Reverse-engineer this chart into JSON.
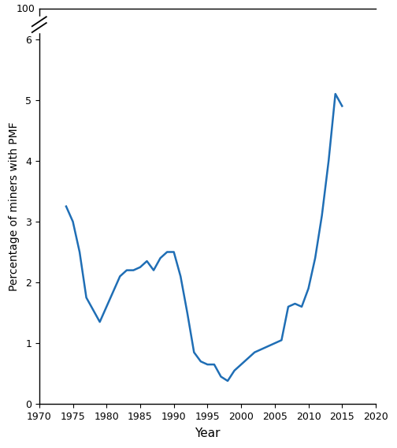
{
  "x": [
    1974,
    1975,
    1976,
    1977,
    1978,
    1979,
    1980,
    1981,
    1982,
    1983,
    1984,
    1985,
    1986,
    1987,
    1988,
    1989,
    1990,
    1991,
    1992,
    1993,
    1994,
    1995,
    1996,
    1997,
    1998,
    1999,
    2000,
    2001,
    2002,
    2003,
    2004,
    2005,
    2006,
    2007,
    2008,
    2009,
    2010,
    2011,
    2012,
    2013,
    2014,
    2015
  ],
  "y": [
    3.25,
    3.0,
    2.5,
    1.75,
    1.55,
    1.35,
    1.6,
    1.85,
    2.1,
    2.2,
    2.2,
    2.25,
    2.35,
    2.2,
    2.4,
    2.5,
    2.5,
    2.1,
    1.5,
    0.85,
    0.7,
    0.65,
    0.65,
    0.45,
    0.38,
    0.55,
    0.65,
    0.75,
    0.85,
    0.9,
    0.95,
    1.0,
    1.05,
    1.6,
    1.65,
    1.6,
    1.9,
    2.4,
    3.1,
    4.0,
    5.1,
    4.9
  ],
  "line_color": "#1f6eb5",
  "line_width": 1.8,
  "xlabel": "Year",
  "ylabel": "Percentage of miners with PMF",
  "xlim": [
    1970,
    2020
  ],
  "ylim": [
    0,
    6.5
  ],
  "ytick_regular": [
    0,
    1,
    2,
    3,
    4,
    5,
    6
  ],
  "xticks": [
    1970,
    1975,
    1980,
    1985,
    1990,
    1995,
    2000,
    2005,
    2010,
    2015,
    2020
  ],
  "background_color": "#ffffff",
  "break_label": "100"
}
